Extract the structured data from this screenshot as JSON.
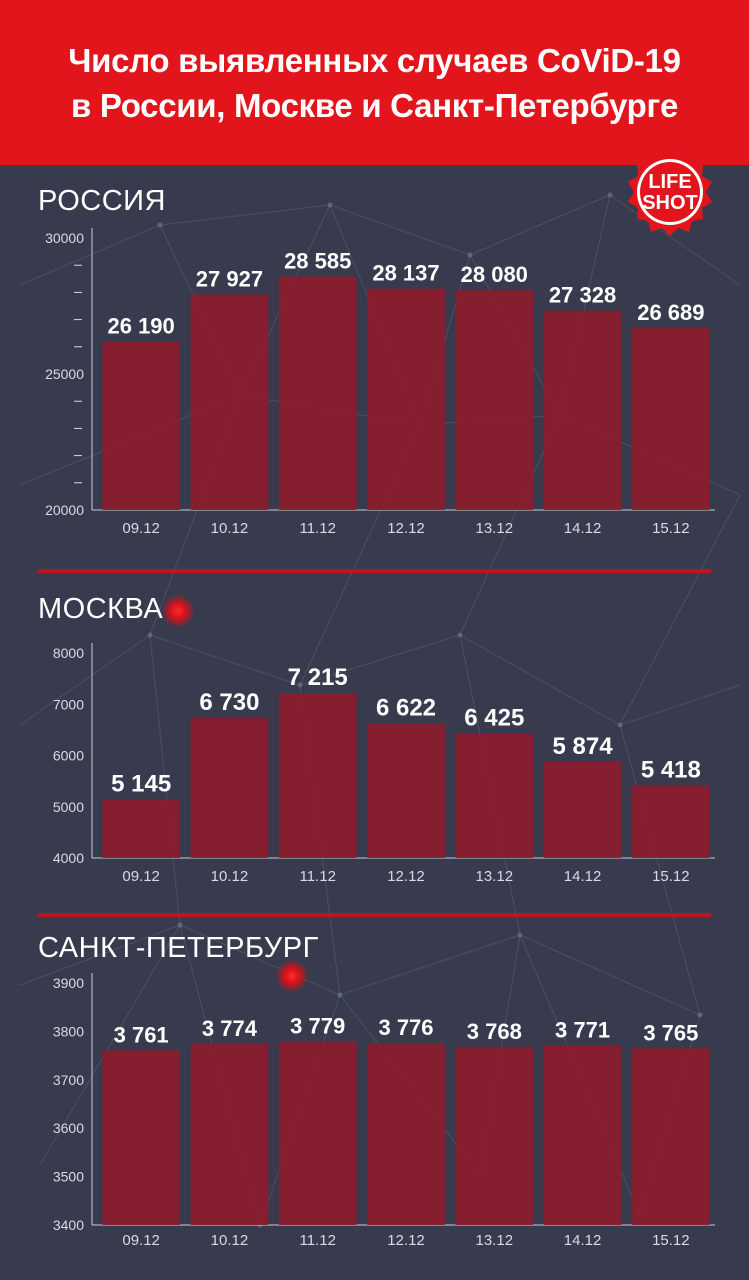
{
  "header": {
    "line1": "Число выявленных случаев CoViD-19",
    "line2": "в России, Москве и Санкт-Петербурге"
  },
  "logo": {
    "line1": "LIFE",
    "line2": "SHOT",
    "icon": "lifeshot-logo"
  },
  "colors": {
    "header": "#e3151c",
    "bar": "#8c1c2b",
    "background": "#383b4e",
    "divider": "#c0141b"
  },
  "chart_data": [
    {
      "type": "bar",
      "title": "РОССИЯ",
      "categories": [
        "09.12",
        "10.12",
        "11.12",
        "12.12",
        "13.12",
        "14.12",
        "15.12"
      ],
      "values": [
        26190,
        27927,
        28585,
        28137,
        28080,
        27328,
        26689
      ],
      "labels": [
        "26 190",
        "27 927",
        "28 585",
        "28 137",
        "28 080",
        "27 328",
        "26 689"
      ],
      "ylim": [
        20000,
        30000
      ],
      "yticks": [
        20000,
        25000,
        30000
      ],
      "minor_ticks": 1000
    },
    {
      "type": "bar",
      "title": "МОСКВА",
      "categories": [
        "09.12",
        "10.12",
        "11.12",
        "12.12",
        "13.12",
        "14.12",
        "15.12"
      ],
      "values": [
        5145,
        6730,
        7215,
        6622,
        6425,
        5874,
        5418
      ],
      "labels": [
        "5 145",
        "6 730",
        "7 215",
        "6 622",
        "6 425",
        "5 874",
        "5 418"
      ],
      "ylim": [
        4000,
        8000
      ],
      "yticks": [
        4000,
        5000,
        6000,
        7000,
        8000
      ]
    },
    {
      "type": "bar",
      "title": "САНКТ-ПЕТЕРБУРГ",
      "categories": [
        "09.12",
        "10.12",
        "11.12",
        "12.12",
        "13.12",
        "14.12",
        "15.12"
      ],
      "values": [
        3761,
        3774,
        3779,
        3776,
        3768,
        3771,
        3765
      ],
      "labels": [
        "3 761",
        "3 774",
        "3 779",
        "3 776",
        "3 768",
        "3 771",
        "3 765"
      ],
      "ylim": [
        3400,
        3900
      ],
      "yticks": [
        3400,
        3500,
        3600,
        3700,
        3800,
        3900
      ]
    }
  ]
}
